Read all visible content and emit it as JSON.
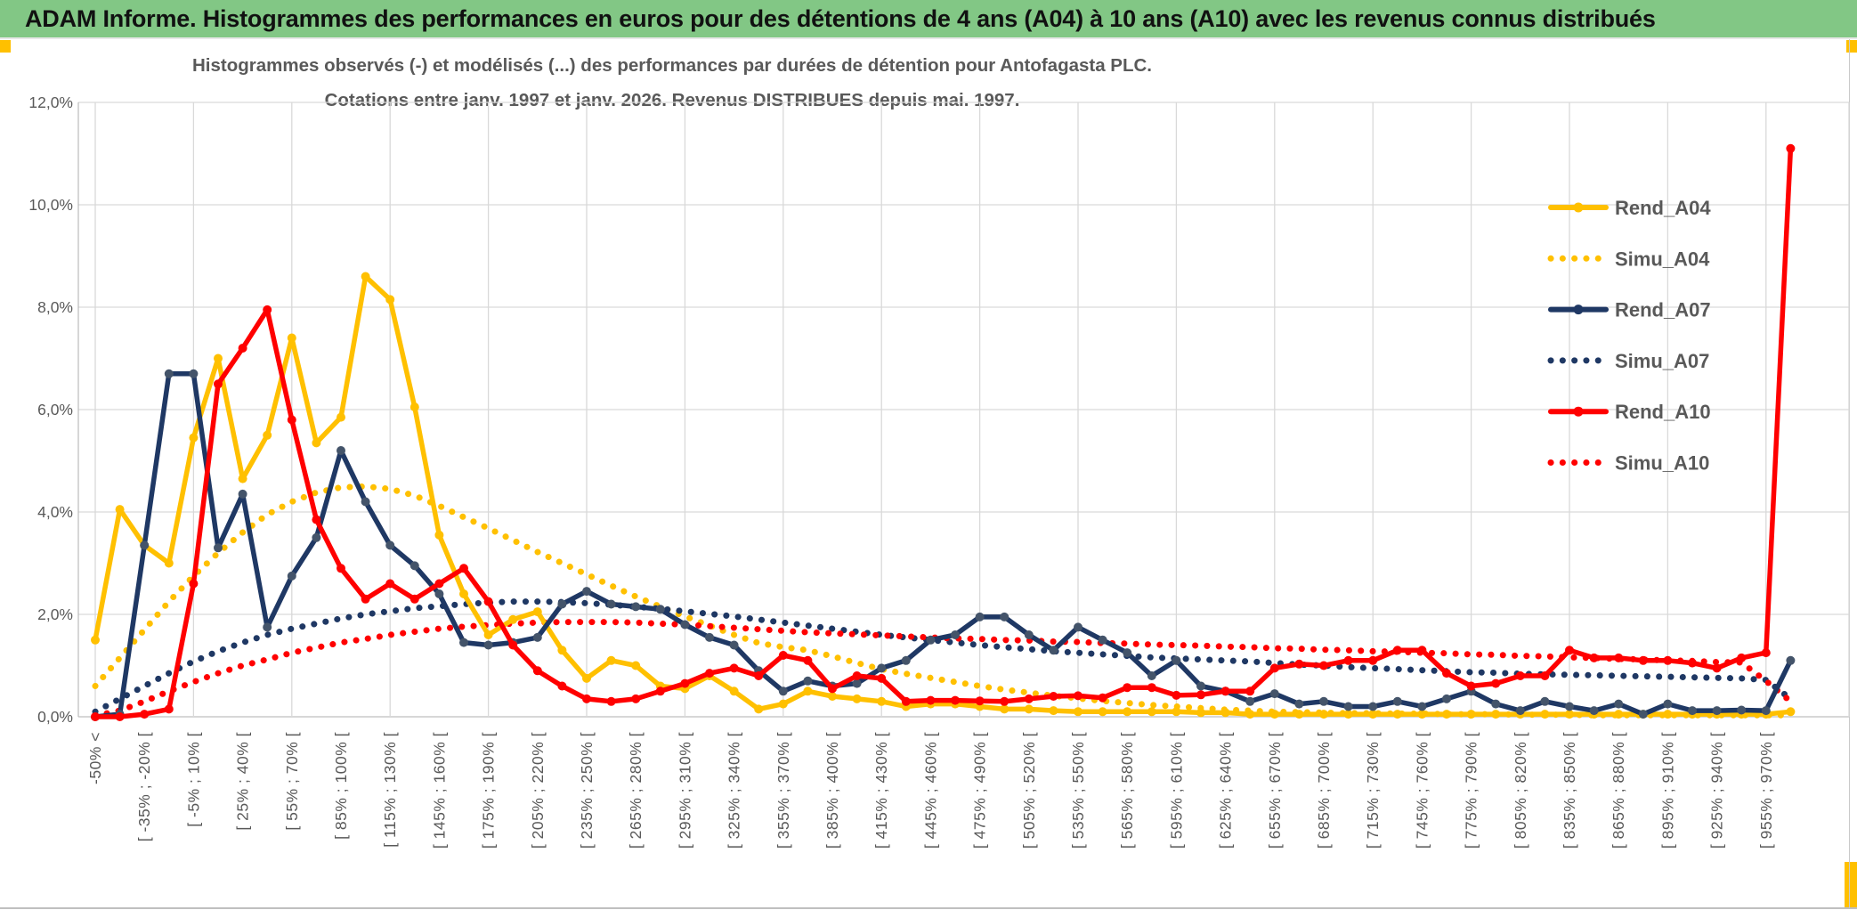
{
  "header": {
    "title": "ADAM Informe. Histogrammes des performances en euros pour des détentions de 4 ans (A04) à 10 ans (A10) avec les revenus connus distribués",
    "bg_color": "#82C785"
  },
  "accent_color": "#FFC000",
  "text_color": "#595959",
  "grid_color": "#D9D9D9",
  "chart_data": {
    "type": "line",
    "title_line1": "Histogrammes observés (-) et modélisés (...) des performances par durées de détention pour Antofagasta PLC.",
    "title_line2": "Cotations entre janv. 1997 et janv. 2026. Revenus DISTRIBUES depuis mai. 1997.",
    "ylabel": "",
    "xlabel": "",
    "ylim": [
      0,
      12
    ],
    "y_tick_labels": [
      "0,0%",
      "2,0%",
      "4,0%",
      "6,0%",
      "8,0%",
      "10,0%",
      "12,0%"
    ],
    "grid": true,
    "legend_position": "right",
    "x_tick_labels": [
      "-50% <",
      "[ -35% ; -20% [",
      "[ -5% ; 10% [",
      "[ 25% ; 40% [",
      "[ 55% ; 70% [",
      "[ 85% ; 100% [",
      "[ 115% ; 130% [",
      "[ 145% ; 160% [",
      "[ 175% ; 190% [",
      "[ 205% ; 220% [",
      "[ 235% ; 250% [",
      "[ 265% ; 280% [",
      "[ 295% ; 310% [",
      "[ 325% ; 340% [",
      "[ 355% ; 370% [",
      "[ 385% ; 400% [",
      "[ 415% ; 430% [",
      "[ 445% ; 460% [",
      "[ 475% ; 490% [",
      "[ 505% ; 520% [",
      "[ 535% ; 550% [",
      "[ 565% ; 580% [",
      "[ 595% ; 610% [",
      "[ 625% ; 640% [",
      "[ 655% ; 670% [",
      "[ 685% ; 700% [",
      "[ 715% ; 730% [",
      "[ 745% ; 760% [",
      "[ 775% ; 790% [",
      "[ 805% ; 820% [",
      "[ 835% ; 850% [",
      "[ 865% ; 880% [",
      "[ 895% ; 910% [",
      "[ 925% ; 940% [",
      "[ 955% ; 970% ["
    ],
    "points_per_label": 2,
    "series": [
      {
        "name": "Simu_A04",
        "style": "dotted",
        "color": "#FFC000",
        "marker": false,
        "values": [
          0.6,
          1.15,
          1.7,
          2.25,
          2.75,
          3.2,
          3.6,
          3.95,
          4.2,
          4.38,
          4.48,
          4.5,
          4.45,
          4.32,
          4.12,
          3.9,
          3.68,
          3.45,
          3.22,
          3.0,
          2.78,
          2.56,
          2.35,
          2.15,
          1.96,
          1.78,
          1.6,
          1.44,
          1.36,
          1.3,
          1.18,
          1.05,
          0.93,
          0.84,
          0.76,
          0.68,
          0.6,
          0.53,
          0.47,
          0.41,
          0.36,
          0.31,
          0.27,
          0.23,
          0.2,
          0.17,
          0.14,
          0.12,
          0.1,
          0.09,
          0.08,
          0.07,
          0.07,
          0.06,
          0.06,
          0.05,
          0.05,
          0.05,
          0.04,
          0.04,
          0.04,
          0.03,
          0.03,
          0.03,
          0.03,
          0.03,
          0.03,
          0.03,
          0.03,
          0.03
        ]
      },
      {
        "name": "Simu_A07",
        "style": "dotted",
        "color": "#1F3864",
        "marker": false,
        "values": [
          0.1,
          0.35,
          0.6,
          0.85,
          1.08,
          1.28,
          1.45,
          1.6,
          1.72,
          1.82,
          1.92,
          2.0,
          2.06,
          2.12,
          2.16,
          2.2,
          2.23,
          2.25,
          2.25,
          2.24,
          2.22,
          2.19,
          2.15,
          2.11,
          2.06,
          2.01,
          1.96,
          1.9,
          1.84,
          1.78,
          1.72,
          1.66,
          1.6,
          1.55,
          1.5,
          1.45,
          1.4,
          1.36,
          1.32,
          1.28,
          1.25,
          1.22,
          1.19,
          1.16,
          1.14,
          1.12,
          1.1,
          1.08,
          1.05,
          1.02,
          1.0,
          0.97,
          0.95,
          0.93,
          0.91,
          0.89,
          0.87,
          0.86,
          0.84,
          0.83,
          0.82,
          0.81,
          0.8,
          0.79,
          0.78,
          0.77,
          0.76,
          0.75,
          0.72,
          0.35
        ]
      },
      {
        "name": "Simu_A10",
        "style": "dotted",
        "color": "#FF0000",
        "marker": false,
        "values": [
          0.02,
          0.12,
          0.3,
          0.5,
          0.68,
          0.85,
          1.0,
          1.12,
          1.25,
          1.35,
          1.45,
          1.52,
          1.6,
          1.66,
          1.72,
          1.76,
          1.79,
          1.82,
          1.84,
          1.85,
          1.85,
          1.85,
          1.84,
          1.82,
          1.8,
          1.77,
          1.74,
          1.71,
          1.68,
          1.65,
          1.63,
          1.61,
          1.59,
          1.57,
          1.55,
          1.53,
          1.52,
          1.5,
          1.49,
          1.47,
          1.46,
          1.44,
          1.43,
          1.41,
          1.4,
          1.39,
          1.37,
          1.36,
          1.34,
          1.33,
          1.31,
          1.3,
          1.28,
          1.27,
          1.25,
          1.24,
          1.22,
          1.21,
          1.19,
          1.18,
          1.16,
          1.15,
          1.13,
          1.12,
          1.1,
          1.09,
          1.07,
          1.06,
          0.7,
          0.3
        ]
      },
      {
        "name": "Rend_A04",
        "style": "solid",
        "color": "#FFC000",
        "marker": true,
        "marker_color": "#FFC000",
        "values": [
          1.5,
          4.05,
          3.35,
          3.0,
          5.45,
          7.0,
          4.65,
          5.5,
          7.4,
          5.35,
          5.85,
          8.6,
          8.15,
          6.05,
          3.55,
          2.4,
          1.6,
          1.9,
          2.05,
          1.3,
          0.75,
          1.1,
          1.0,
          0.6,
          0.55,
          0.8,
          0.5,
          0.15,
          0.25,
          0.5,
          0.4,
          0.35,
          0.3,
          0.2,
          0.25,
          0.25,
          0.2,
          0.15,
          0.15,
          0.12,
          0.1,
          0.1,
          0.1,
          0.1,
          0.1,
          0.08,
          0.08,
          0.05,
          0.05,
          0.05,
          0.05,
          0.05,
          0.05,
          0.05,
          0.05,
          0.05,
          0.05,
          0.05,
          0.05,
          0.05,
          0.05,
          0.05,
          0.05,
          0.05,
          0.05,
          0.05,
          0.05,
          0.05,
          0.05,
          0.1
        ]
      },
      {
        "name": "Rend_A07",
        "style": "solid",
        "color": "#1F3864",
        "marker": true,
        "marker_color": "#44546A",
        "values": [
          0.0,
          0.05,
          3.35,
          6.7,
          6.7,
          3.3,
          4.35,
          1.75,
          2.75,
          3.5,
          5.2,
          4.2,
          3.35,
          2.95,
          2.4,
          1.45,
          1.4,
          1.45,
          1.55,
          2.2,
          2.45,
          2.2,
          2.15,
          2.1,
          1.8,
          1.55,
          1.4,
          0.9,
          0.5,
          0.7,
          0.6,
          0.65,
          0.95,
          1.1,
          1.5,
          1.6,
          1.95,
          1.95,
          1.6,
          1.3,
          1.75,
          1.5,
          1.25,
          0.8,
          1.1,
          0.6,
          0.5,
          0.3,
          0.45,
          0.25,
          0.3,
          0.2,
          0.2,
          0.3,
          0.2,
          0.35,
          0.5,
          0.25,
          0.12,
          0.3,
          0.2,
          0.12,
          0.25,
          0.05,
          0.25,
          0.12,
          0.12,
          0.13,
          0.12,
          1.1
        ]
      },
      {
        "name": "Rend_A10",
        "style": "solid",
        "color": "#FF0000",
        "marker": true,
        "marker_color": "#FF0000",
        "values": [
          0.0,
          0.0,
          0.05,
          0.15,
          2.6,
          6.5,
          7.2,
          7.95,
          5.8,
          3.85,
          2.9,
          2.3,
          2.6,
          2.3,
          2.6,
          2.9,
          2.25,
          1.4,
          0.9,
          0.6,
          0.35,
          0.3,
          0.35,
          0.5,
          0.65,
          0.85,
          0.95,
          0.8,
          1.2,
          1.1,
          0.55,
          0.8,
          0.75,
          0.3,
          0.32,
          0.32,
          0.31,
          0.3,
          0.35,
          0.4,
          0.41,
          0.37,
          0.57,
          0.57,
          0.42,
          0.43,
          0.5,
          0.5,
          0.95,
          1.03,
          1.0,
          1.1,
          1.1,
          1.3,
          1.3,
          0.85,
          0.6,
          0.65,
          0.8,
          0.8,
          1.3,
          1.15,
          1.15,
          1.1,
          1.1,
          1.05,
          0.95,
          1.15,
          1.25,
          11.1
        ]
      }
    ]
  },
  "legend": {
    "items": [
      {
        "label": "Rend_A04",
        "style": "solid",
        "color": "#FFC000"
      },
      {
        "label": "Simu_A04",
        "style": "dotted",
        "color": "#FFC000"
      },
      {
        "label": "Rend_A07",
        "style": "solid",
        "color": "#1F3864"
      },
      {
        "label": "Simu_A07",
        "style": "dotted",
        "color": "#1F3864"
      },
      {
        "label": "Rend_A10",
        "style": "solid",
        "color": "#FF0000"
      },
      {
        "label": "Simu_A10",
        "style": "dotted",
        "color": "#FF0000"
      }
    ]
  }
}
